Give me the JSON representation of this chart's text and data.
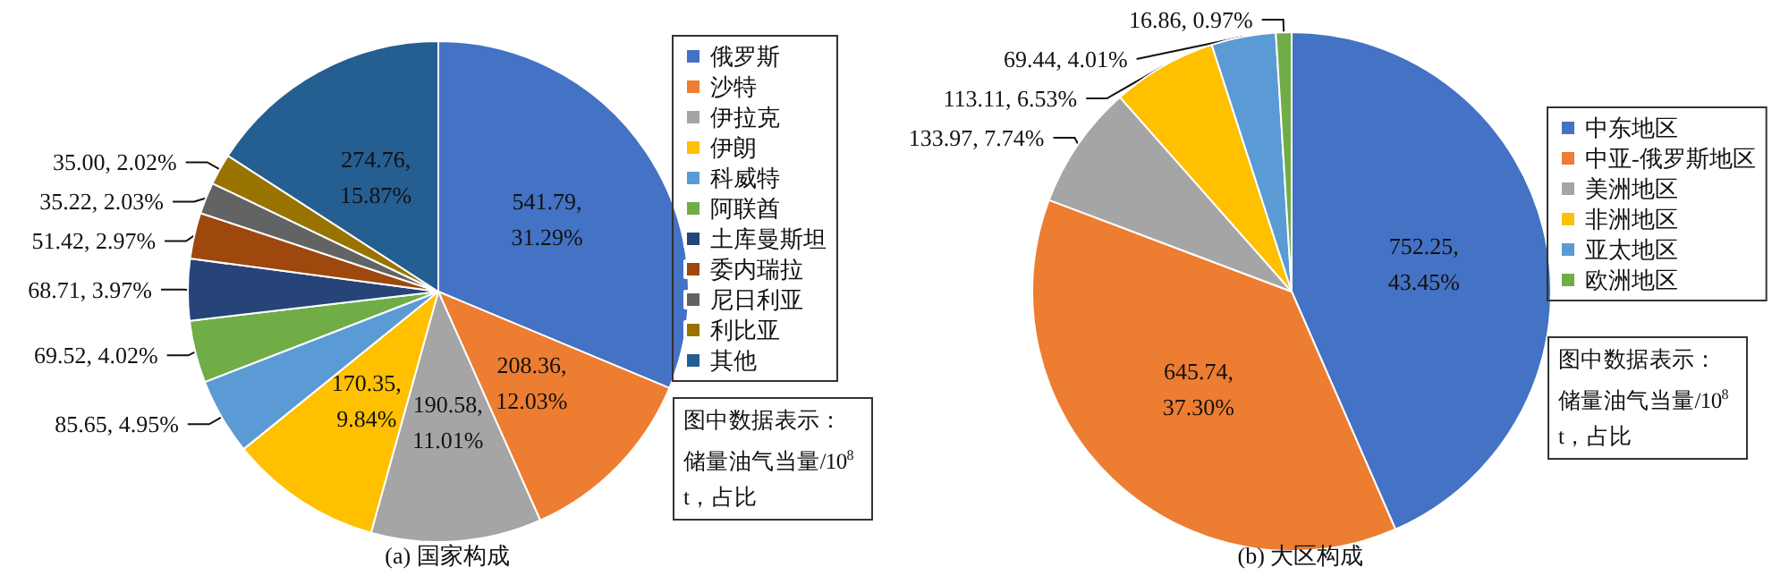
{
  "chart_data": [
    {
      "type": "pie",
      "title": "(a) 国家构成",
      "legend": "right",
      "categories": [
        "俄罗斯",
        "沙特",
        "伊拉克",
        "伊朗",
        "科威特",
        "阿联酋",
        "土库曼斯坦",
        "委内瑞拉",
        "尼日利亚",
        "利比亚",
        "其他"
      ],
      "values": [
        541.79,
        208.36,
        190.58,
        170.35,
        85.65,
        69.52,
        68.71,
        51.42,
        35.22,
        35.0,
        274.76
      ],
      "value_labels": [
        "541.79, 31.29%",
        "208.36, 12.03%",
        "190.58, 11.01%",
        "170.35, 9.84%",
        "85.65, 4.95%",
        "69.52, 4.02%",
        "68.71, 3.97%",
        "51.42, 2.97%",
        "35.22, 2.03%",
        "35.00, 2.02%",
        "274.76, 15.87%"
      ],
      "colors": [
        "#4472c4",
        "#ed7d31",
        "#a5a5a5",
        "#ffc000",
        "#5b9bd5",
        "#70ad47",
        "#264478",
        "#9e480e",
        "#636363",
        "#997300",
        "#255e91"
      ],
      "annotations": [
        "图中数据表示：储量油气当量/10$^{8}$ t，占比"
      ]
    },
    {
      "type": "pie",
      "title": "(b) 大区构成",
      "legend": "right",
      "categories": [
        "中东地区",
        "中亚-俄罗斯地区",
        "美洲地区",
        "非洲地区",
        "亚太地区",
        "欧洲地区"
      ],
      "values": [
        752.25,
        645.74,
        133.97,
        113.11,
        69.44,
        16.86
      ],
      "value_labels": [
        "752.25, 43.45%",
        "645.74, 37.30%",
        "133.97, 7.74%",
        "113.11, 6.53%",
        "69.44, 4.01%",
        "16.86, 0.97%"
      ],
      "colors": [
        "#4472c4",
        "#ed7d31",
        "#a5a5a5",
        "#ffc000",
        "#5b9bd5",
        "#70ad47"
      ],
      "annotations": [
        "图中数据表示：储量油气当量/10$^{8}$ t，占比"
      ]
    }
  ]
}
